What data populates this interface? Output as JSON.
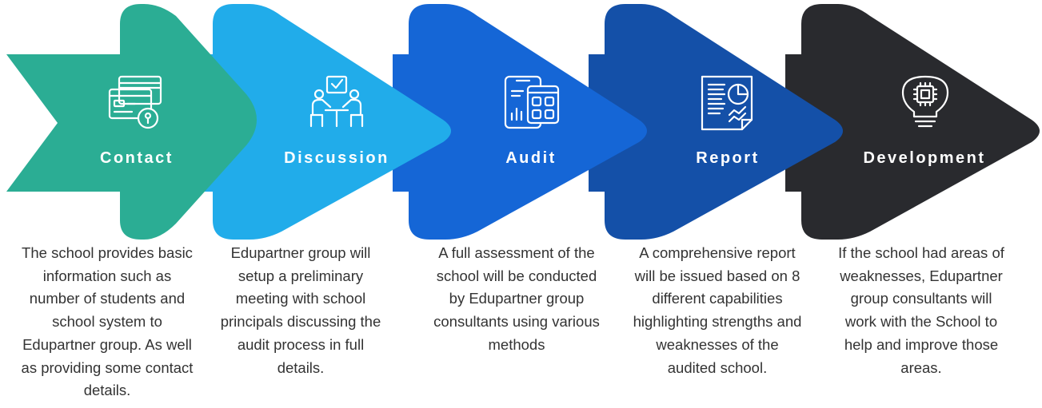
{
  "steps": [
    {
      "title": "Contact",
      "icon": "credit-card-lock-icon",
      "color": "#2bad94",
      "description": "The school provides basic information such as number of students and school system to Edupartner group. As well as providing some contact details."
    },
    {
      "title": "Discussion",
      "icon": "meeting-discussion-icon",
      "color": "#21acea",
      "description": "Edupartner group will setup a preliminary meeting with school principals discussing the audit process in full details."
    },
    {
      "title": "Audit",
      "icon": "audit-dashboard-icon",
      "color": "#1566d6",
      "description": "A full assessment of the school will be conducted by Edupartner group consultants using various methods"
    },
    {
      "title": "Report",
      "icon": "report-document-icon",
      "color": "#1450a8",
      "description": "A comprehensive report will be issued based on 8 different capabilities highlighting strengths and weaknesses of the audited school."
    },
    {
      "title": "Development",
      "icon": "lightbulb-chip-icon",
      "color": "#292a2e",
      "description": "If the school had areas of weaknesses, Edupartner group consultants will work with the School to help and improve those areas."
    }
  ]
}
